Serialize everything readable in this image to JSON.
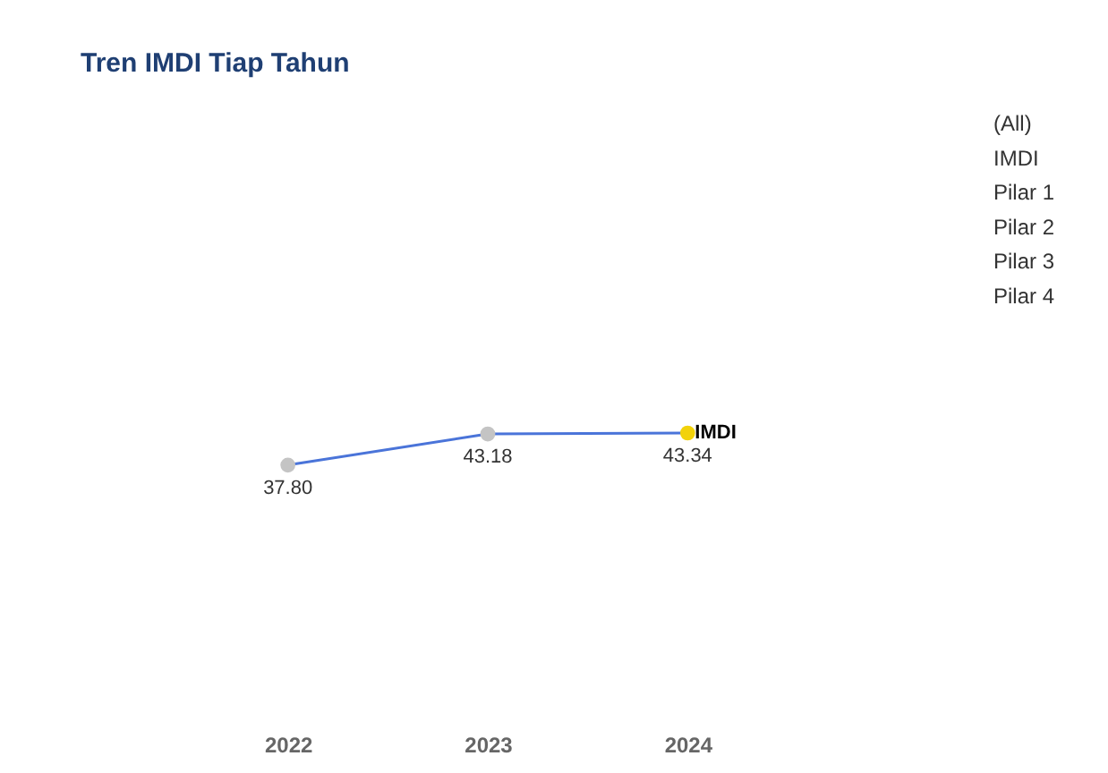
{
  "chart_data": {
    "type": "line",
    "title": "Tren IMDI Tiap Tahun",
    "categories": [
      "2022",
      "2023",
      "2024"
    ],
    "series": [
      {
        "name": "IMDI",
        "color": "#4a74d9",
        "colors": [
          "#c4c4c4",
          "#c4c4c4",
          "#f2d20a"
        ],
        "values": [
          37.8,
          43.18,
          43.34
        ],
        "value_labels": [
          "37.80",
          "43.18",
          "43.34"
        ]
      }
    ],
    "tick_labels": "x",
    "grid": false,
    "marker": "circle",
    "line_style": "solid",
    "annotations": [
      "(All)",
      "IMDI",
      "Pilar 1",
      "Pilar 2",
      "Pilar 3",
      "Pilar 4"
    ]
  }
}
